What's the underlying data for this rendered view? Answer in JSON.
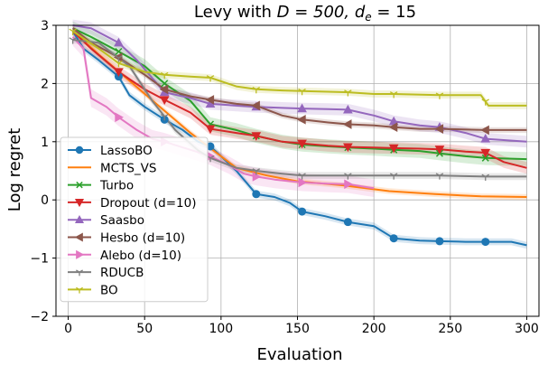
{
  "chart_data": {
    "type": "line",
    "title_prefix": "Levy with ",
    "title_math": "D = 500, d",
    "title_sub": "e",
    "title_suffix": " = 15",
    "xlabel": "Evaluation",
    "ylabel": "Log regret",
    "xlim": [
      -8,
      308
    ],
    "ylim": [
      -2,
      3
    ],
    "xticks": [
      0,
      50,
      100,
      150,
      200,
      250,
      300
    ],
    "yticks": [
      -2,
      -1,
      0,
      1,
      2,
      3
    ],
    "grid": true,
    "legend_position": "left",
    "series": [
      {
        "name": "LassoBO",
        "color": "#1f77b4",
        "marker": "circle",
        "band": 0.06,
        "points": [
          [
            3,
            2.9
          ],
          [
            10,
            2.6
          ],
          [
            20,
            2.4
          ],
          [
            33,
            2.12
          ],
          [
            40,
            1.8
          ],
          [
            50,
            1.6
          ],
          [
            63,
            1.38
          ],
          [
            75,
            1.2
          ],
          [
            85,
            1.0
          ],
          [
            93,
            0.92
          ],
          [
            100,
            0.75
          ],
          [
            110,
            0.5
          ],
          [
            123,
            0.1
          ],
          [
            135,
            0.05
          ],
          [
            145,
            -0.05
          ],
          [
            153,
            -0.2
          ],
          [
            168,
            -0.28
          ],
          [
            183,
            -0.38
          ],
          [
            200,
            -0.45
          ],
          [
            213,
            -0.66
          ],
          [
            230,
            -0.7
          ],
          [
            243,
            -0.71
          ],
          [
            260,
            -0.72
          ],
          [
            273,
            -0.72
          ],
          [
            290,
            -0.72
          ],
          [
            300,
            -0.78
          ]
        ],
        "marker_x": [
          33,
          63,
          93,
          123,
          153,
          183,
          213,
          243,
          273
        ]
      },
      {
        "name": "MCTS_VS",
        "color": "#ff7f0e",
        "marker": "none",
        "band": 0.05,
        "points": [
          [
            3,
            2.9
          ],
          [
            20,
            2.5
          ],
          [
            40,
            2.05
          ],
          [
            60,
            1.6
          ],
          [
            80,
            1.15
          ],
          [
            95,
            0.85
          ],
          [
            110,
            0.55
          ],
          [
            130,
            0.42
          ],
          [
            150,
            0.32
          ],
          [
            180,
            0.25
          ],
          [
            210,
            0.15
          ],
          [
            240,
            0.1
          ],
          [
            270,
            0.06
          ],
          [
            300,
            0.05
          ]
        ],
        "marker_x": []
      },
      {
        "name": "Turbo",
        "color": "#2ca02c",
        "marker": "x",
        "band": 0.12,
        "points": [
          [
            3,
            2.95
          ],
          [
            15,
            2.8
          ],
          [
            33,
            2.55
          ],
          [
            50,
            2.3
          ],
          [
            63,
            2.0
          ],
          [
            80,
            1.7
          ],
          [
            93,
            1.3
          ],
          [
            110,
            1.2
          ],
          [
            123,
            1.1
          ],
          [
            140,
            1.0
          ],
          [
            153,
            0.95
          ],
          [
            170,
            0.92
          ],
          [
            183,
            0.9
          ],
          [
            200,
            0.88
          ],
          [
            213,
            0.86
          ],
          [
            230,
            0.84
          ],
          [
            243,
            0.8
          ],
          [
            260,
            0.75
          ],
          [
            273,
            0.72
          ],
          [
            300,
            0.7
          ]
        ],
        "marker_x": [
          33,
          63,
          93,
          123,
          153,
          183,
          213,
          243,
          273
        ]
      },
      {
        "name": "Dropout (d=10)",
        "color": "#d62728",
        "marker": "triangle-down",
        "band": 0.1,
        "points": [
          [
            3,
            2.9
          ],
          [
            15,
            2.6
          ],
          [
            33,
            2.2
          ],
          [
            50,
            1.9
          ],
          [
            63,
            1.72
          ],
          [
            80,
            1.5
          ],
          [
            93,
            1.22
          ],
          [
            110,
            1.15
          ],
          [
            123,
            1.1
          ],
          [
            140,
            1.0
          ],
          [
            153,
            0.97
          ],
          [
            170,
            0.93
          ],
          [
            183,
            0.91
          ],
          [
            200,
            0.9
          ],
          [
            213,
            0.89
          ],
          [
            230,
            0.88
          ],
          [
            243,
            0.87
          ],
          [
            260,
            0.83
          ],
          [
            273,
            0.81
          ],
          [
            285,
            0.65
          ],
          [
            300,
            0.55
          ]
        ],
        "marker_x": [
          33,
          63,
          93,
          123,
          153,
          183,
          213,
          243,
          273
        ]
      },
      {
        "name": "Saasbo",
        "color": "#9467bd",
        "marker": "triangle-up",
        "band": 0.1,
        "points": [
          [
            3,
            3.0
          ],
          [
            15,
            2.95
          ],
          [
            33,
            2.7
          ],
          [
            45,
            2.4
          ],
          [
            63,
            1.85
          ],
          [
            80,
            1.75
          ],
          [
            93,
            1.65
          ],
          [
            110,
            1.62
          ],
          [
            123,
            1.6
          ],
          [
            140,
            1.58
          ],
          [
            153,
            1.57
          ],
          [
            170,
            1.56
          ],
          [
            183,
            1.55
          ],
          [
            200,
            1.45
          ],
          [
            213,
            1.35
          ],
          [
            230,
            1.28
          ],
          [
            243,
            1.25
          ],
          [
            260,
            1.15
          ],
          [
            273,
            1.05
          ],
          [
            300,
            1.0
          ]
        ],
        "marker_x": [
          33,
          63,
          93,
          123,
          153,
          183,
          213,
          243,
          273
        ]
      },
      {
        "name": "Hesbo (d=10)",
        "color": "#8c564b",
        "marker": "triangle-left",
        "band": 0.05,
        "points": [
          [
            3,
            2.95
          ],
          [
            15,
            2.7
          ],
          [
            33,
            2.45
          ],
          [
            50,
            2.15
          ],
          [
            63,
            1.9
          ],
          [
            80,
            1.78
          ],
          [
            93,
            1.72
          ],
          [
            110,
            1.65
          ],
          [
            123,
            1.62
          ],
          [
            140,
            1.45
          ],
          [
            153,
            1.38
          ],
          [
            170,
            1.33
          ],
          [
            183,
            1.3
          ],
          [
            200,
            1.28
          ],
          [
            213,
            1.25
          ],
          [
            230,
            1.22
          ],
          [
            243,
            1.22
          ],
          [
            273,
            1.2
          ],
          [
            300,
            1.2
          ]
        ],
        "marker_x": [
          33,
          63,
          93,
          123,
          153,
          183,
          213,
          243,
          273
        ]
      },
      {
        "name": "Alebo (d=10)",
        "color": "#e377c2",
        "marker": "triangle-right",
        "band": 0.15,
        "points": [
          [
            3,
            2.8
          ],
          [
            10,
            2.6
          ],
          [
            15,
            1.75
          ],
          [
            25,
            1.6
          ],
          [
            33,
            1.42
          ],
          [
            45,
            1.2
          ],
          [
            55,
            1.05
          ],
          [
            63,
            1.0
          ],
          [
            75,
            0.9
          ],
          [
            85,
            0.82
          ],
          [
            93,
            0.75
          ],
          [
            105,
            0.6
          ],
          [
            115,
            0.45
          ],
          [
            123,
            0.4
          ],
          [
            135,
            0.35
          ],
          [
            153,
            0.3
          ],
          [
            170,
            0.28
          ],
          [
            183,
            0.27
          ],
          [
            195,
            0.22
          ],
          [
            200,
            0.2
          ]
        ],
        "marker_x": [
          33,
          63,
          93,
          123,
          153,
          183
        ]
      },
      {
        "name": "RDUCB",
        "color": "#7f7f7f",
        "marker": "tri-down",
        "band": 0.06,
        "points": [
          [
            3,
            2.75
          ],
          [
            20,
            2.7
          ],
          [
            40,
            2.3
          ],
          [
            55,
            1.7
          ],
          [
            70,
            1.2
          ],
          [
            85,
            0.85
          ],
          [
            93,
            0.72
          ],
          [
            110,
            0.55
          ],
          [
            123,
            0.5
          ],
          [
            140,
            0.45
          ],
          [
            153,
            0.42
          ],
          [
            183,
            0.42
          ],
          [
            213,
            0.42
          ],
          [
            243,
            0.42
          ],
          [
            273,
            0.4
          ],
          [
            300,
            0.4
          ]
        ],
        "marker_x": [
          3,
          33,
          63,
          93,
          123,
          153,
          183,
          213,
          243,
          273
        ]
      },
      {
        "name": "BO",
        "color": "#bcbd22",
        "marker": "tri-down",
        "band": 0.06,
        "points": [
          [
            3,
            2.9
          ],
          [
            20,
            2.6
          ],
          [
            33,
            2.35
          ],
          [
            50,
            2.2
          ],
          [
            63,
            2.15
          ],
          [
            80,
            2.12
          ],
          [
            93,
            2.1
          ],
          [
            110,
            1.95
          ],
          [
            123,
            1.9
          ],
          [
            140,
            1.88
          ],
          [
            153,
            1.87
          ],
          [
            183,
            1.85
          ],
          [
            200,
            1.82
          ],
          [
            213,
            1.82
          ],
          [
            243,
            1.8
          ],
          [
            270,
            1.8
          ],
          [
            275,
            1.62
          ],
          [
            300,
            1.62
          ]
        ],
        "marker_x": [
          3,
          33,
          63,
          93,
          123,
          153,
          183,
          213,
          243,
          273
        ]
      }
    ]
  }
}
